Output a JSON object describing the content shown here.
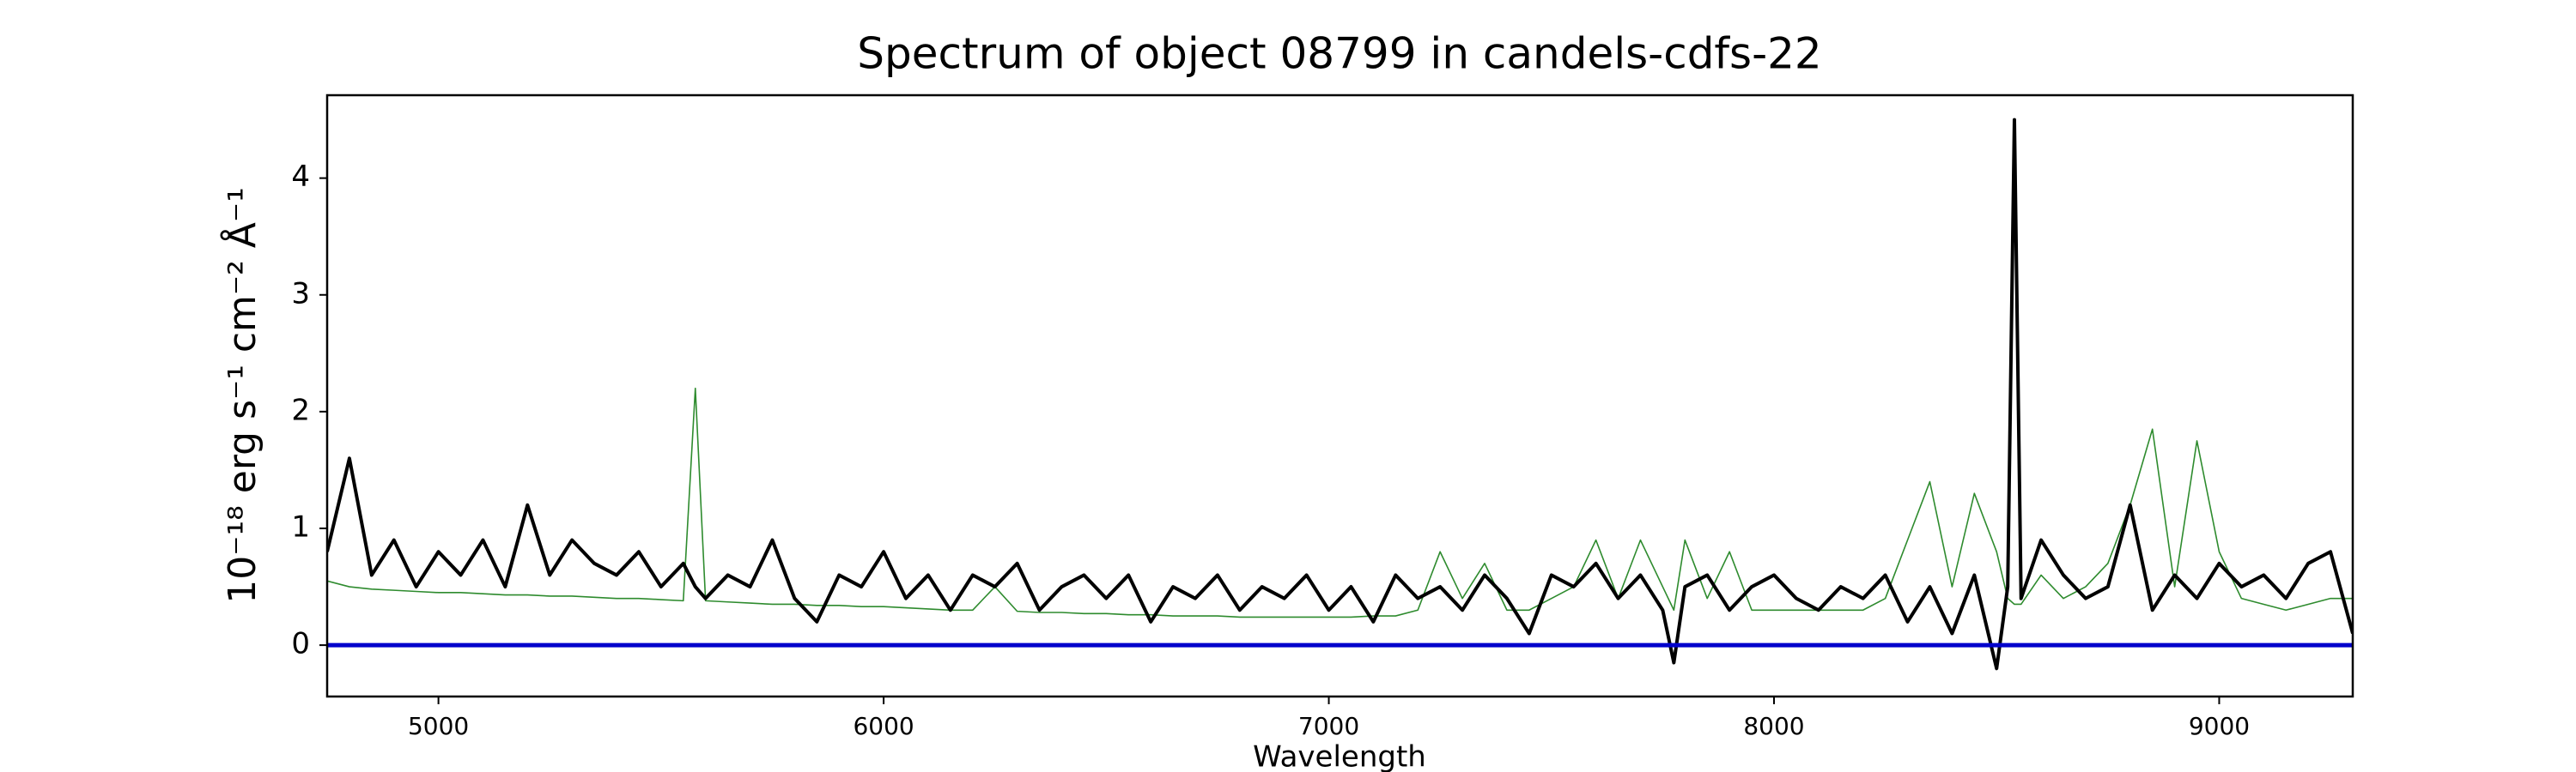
{
  "chart_data": {
    "type": "line",
    "title": "Spectrum of object 08799 in candels-cdfs-22",
    "x_label": "Wavelength",
    "y_label": "10⁻¹⁸ erg s⁻¹ cm⁻² Å⁻¹",
    "x": [
      4750,
      4800,
      4850,
      4900,
      4950,
      5000,
      5050,
      5100,
      5150,
      5200,
      5250,
      5300,
      5350,
      5400,
      5450,
      5500,
      5550,
      5577,
      5600,
      5650,
      5700,
      5750,
      5800,
      5850,
      5900,
      5950,
      6000,
      6050,
      6100,
      6150,
      6200,
      6250,
      6300,
      6350,
      6400,
      6450,
      6500,
      6550,
      6600,
      6650,
      6700,
      6750,
      6800,
      6850,
      6900,
      6950,
      7000,
      7050,
      7100,
      7150,
      7200,
      7250,
      7300,
      7350,
      7400,
      7450,
      7500,
      7550,
      7600,
      7650,
      7700,
      7750,
      7775,
      7800,
      7850,
      7900,
      7950,
      8000,
      8050,
      8100,
      8150,
      8200,
      8250,
      8300,
      8350,
      8400,
      8450,
      8500,
      8525,
      8540,
      8555,
      8600,
      8650,
      8700,
      8750,
      8800,
      8850,
      8900,
      8950,
      9000,
      9050,
      9100,
      9150,
      9200,
      9250,
      9300
    ],
    "series": [
      {
        "color": "#2e8b2e",
        "width": 1.6,
        "values": [
          0.55,
          0.5,
          0.48,
          0.47,
          0.46,
          0.45,
          0.45,
          0.44,
          0.43,
          0.43,
          0.42,
          0.42,
          0.41,
          0.4,
          0.4,
          0.39,
          0.38,
          2.2,
          0.38,
          0.37,
          0.36,
          0.35,
          0.35,
          0.34,
          0.34,
          0.33,
          0.33,
          0.32,
          0.31,
          0.3,
          0.3,
          0.5,
          0.29,
          0.28,
          0.28,
          0.27,
          0.27,
          0.26,
          0.26,
          0.25,
          0.25,
          0.25,
          0.24,
          0.24,
          0.24,
          0.24,
          0.24,
          0.24,
          0.25,
          0.25,
          0.3,
          0.8,
          0.4,
          0.7,
          0.3,
          0.3,
          0.4,
          0.5,
          0.9,
          0.4,
          0.9,
          0.5,
          0.3,
          0.9,
          0.4,
          0.8,
          0.3,
          0.3,
          0.3,
          0.3,
          0.3,
          0.3,
          0.4,
          0.9,
          1.4,
          0.5,
          1.3,
          0.8,
          0.4,
          0.35,
          0.35,
          0.6,
          0.4,
          0.5,
          0.7,
          1.2,
          1.85,
          0.5,
          1.75,
          0.8,
          0.4,
          0.35,
          0.3,
          0.35,
          0.4,
          0.4
        ]
      },
      {
        "color": "#000000",
        "width": 4,
        "values": [
          0.8,
          1.6,
          0.6,
          0.9,
          0.5,
          0.8,
          0.6,
          0.9,
          0.5,
          1.2,
          0.6,
          0.9,
          0.7,
          0.6,
          0.8,
          0.5,
          0.7,
          0.5,
          0.4,
          0.6,
          0.5,
          0.9,
          0.4,
          0.2,
          0.6,
          0.5,
          0.8,
          0.4,
          0.6,
          0.3,
          0.6,
          0.5,
          0.7,
          0.3,
          0.5,
          0.6,
          0.4,
          0.6,
          0.2,
          0.5,
          0.4,
          0.6,
          0.3,
          0.5,
          0.4,
          0.6,
          0.3,
          0.5,
          0.2,
          0.6,
          0.4,
          0.5,
          0.3,
          0.6,
          0.4,
          0.1,
          0.6,
          0.5,
          0.7,
          0.4,
          0.6,
          0.3,
          -0.15,
          0.5,
          0.6,
          0.3,
          0.5,
          0.6,
          0.4,
          0.3,
          0.5,
          0.4,
          0.6,
          0.2,
          0.5,
          0.1,
          0.6,
          -0.2,
          0.5,
          4.5,
          0.4,
          0.9,
          0.6,
          0.4,
          0.5,
          1.2,
          0.3,
          0.6,
          0.4,
          0.7,
          0.5,
          0.6,
          0.4,
          0.7,
          0.8,
          0.1
        ]
      }
    ],
    "hline": {
      "y": 0,
      "color": "#0000cc"
    },
    "xlim": [
      4750,
      9300
    ],
    "ylim": [
      -0.44,
      4.71
    ],
    "xticks": [
      5000,
      6000,
      7000,
      8000,
      9000
    ],
    "yticks": [
      0,
      1,
      2,
      3,
      4
    ]
  }
}
